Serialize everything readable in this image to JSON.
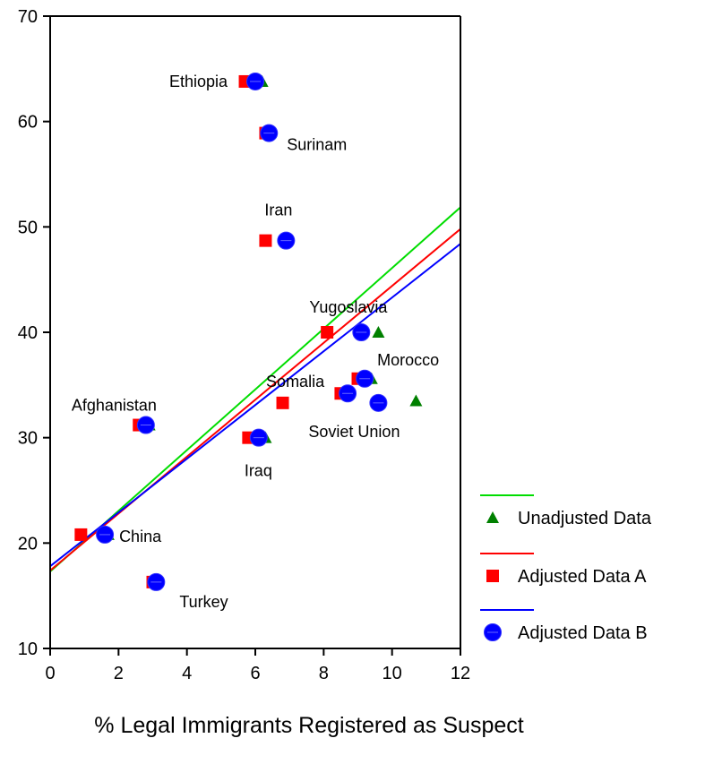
{
  "chart_data": {
    "type": "scatter",
    "title": "",
    "xlabel": "% Legal Immigrants Registered as Suspect",
    "ylabel": "",
    "xlim": [
      0,
      12
    ],
    "ylim": [
      10,
      70
    ],
    "xticks": [
      0,
      2,
      4,
      6,
      8,
      10,
      12
    ],
    "yticks": [
      10,
      20,
      30,
      40,
      50,
      60,
      70
    ],
    "grid": false,
    "legend_position": "bottom-right",
    "point_labels": [
      {
        "text": "Ethiopia",
        "x": 6.0,
        "y": 63.8
      },
      {
        "text": "Surinam",
        "x": 6.4,
        "y": 58.9
      },
      {
        "text": "Iran",
        "x": 6.9,
        "y": 48.7
      },
      {
        "text": "Yugoslavia",
        "x": 9.1,
        "y": 40.0
      },
      {
        "text": "Morocco",
        "x": 9.2,
        "y": 35.6
      },
      {
        "text": "Somalia",
        "x": 8.7,
        "y": 34.2
      },
      {
        "text": "Soviet Union",
        "x": 9.6,
        "y": 33.3
      },
      {
        "text": "Afghanistan",
        "x": 2.8,
        "y": 31.2
      },
      {
        "text": "Iraq",
        "x": 6.1,
        "y": 30.0
      },
      {
        "text": "China",
        "x": 1.6,
        "y": 20.8
      },
      {
        "text": "Turkey",
        "x": 3.1,
        "y": 16.3
      }
    ],
    "series": [
      {
        "name": "Unadjusted Data",
        "marker": "triangle",
        "color": "#008000",
        "line_color": "#00dd00",
        "trend": {
          "intercept": 17.3,
          "slope": 2.88
        },
        "points": [
          {
            "x": 6.2,
            "y": 63.8
          },
          {
            "x": 6.4,
            "y": 58.9
          },
          {
            "x": 6.9,
            "y": 48.7
          },
          {
            "x": 9.6,
            "y": 40.0
          },
          {
            "x": 9.4,
            "y": 35.6
          },
          {
            "x": 8.7,
            "y": 34.2
          },
          {
            "x": 10.7,
            "y": 33.5
          },
          {
            "x": 2.9,
            "y": 31.2
          },
          {
            "x": 6.3,
            "y": 30.0
          },
          {
            "x": 1.7,
            "y": 20.8
          },
          {
            "x": 3.1,
            "y": 16.3
          }
        ]
      },
      {
        "name": "Adjusted Data A",
        "marker": "square",
        "color": "#ff0000",
        "line_color": "#ff0000",
        "trend": {
          "intercept": 17.4,
          "slope": 2.7
        },
        "points": [
          {
            "x": 5.7,
            "y": 63.8
          },
          {
            "x": 6.3,
            "y": 58.9
          },
          {
            "x": 6.3,
            "y": 48.7
          },
          {
            "x": 8.1,
            "y": 40.0
          },
          {
            "x": 9.0,
            "y": 35.6
          },
          {
            "x": 8.5,
            "y": 34.2
          },
          {
            "x": 6.8,
            "y": 33.3
          },
          {
            "x": 2.6,
            "y": 31.2
          },
          {
            "x": 5.8,
            "y": 30.0
          },
          {
            "x": 0.9,
            "y": 20.8
          },
          {
            "x": 3.0,
            "y": 16.3
          }
        ]
      },
      {
        "name": "Adjusted Data B",
        "marker": "circle",
        "color": "#0000ff",
        "line_color": "#0000ff",
        "trend": {
          "intercept": 17.8,
          "slope": 2.55
        },
        "points": [
          {
            "x": 6.0,
            "y": 63.8
          },
          {
            "x": 6.4,
            "y": 58.9
          },
          {
            "x": 6.9,
            "y": 48.7
          },
          {
            "x": 9.1,
            "y": 40.0
          },
          {
            "x": 9.2,
            "y": 35.6
          },
          {
            "x": 8.7,
            "y": 34.2
          },
          {
            "x": 9.6,
            "y": 33.3
          },
          {
            "x": 2.8,
            "y": 31.2
          },
          {
            "x": 6.1,
            "y": 30.0
          },
          {
            "x": 1.6,
            "y": 20.8
          },
          {
            "x": 3.1,
            "y": 16.3
          }
        ]
      }
    ]
  }
}
